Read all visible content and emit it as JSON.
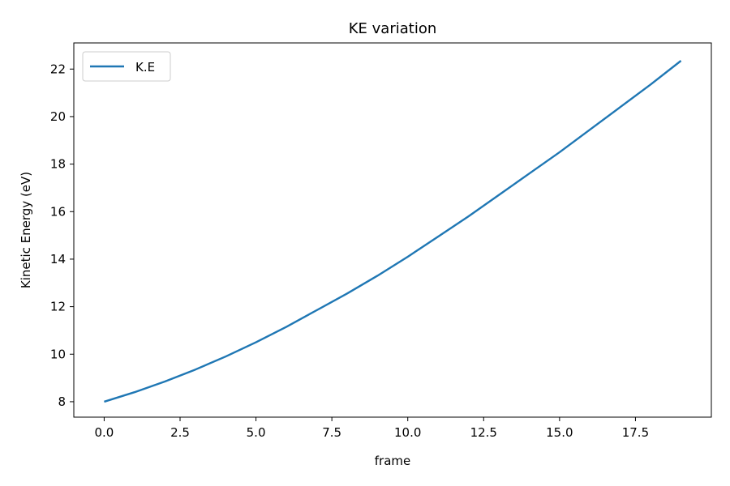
{
  "chart_data": {
    "type": "line",
    "title": "KE variation",
    "xlabel": "frame",
    "ylabel": "Kinetic Energy (eV)",
    "xlim": [
      -1,
      20
    ],
    "ylim": [
      7.35,
      23.1
    ],
    "xticks": [
      0.0,
      2.5,
      5.0,
      7.5,
      10.0,
      12.5,
      15.0,
      17.5
    ],
    "xtick_labels": [
      "0.0",
      "2.5",
      "5.0",
      "7.5",
      "10.0",
      "12.5",
      "15.0",
      "17.5"
    ],
    "yticks": [
      8,
      10,
      12,
      14,
      16,
      18,
      20,
      22
    ],
    "ytick_labels": [
      "8",
      "10",
      "12",
      "14",
      "16",
      "18",
      "20",
      "22"
    ],
    "grid": false,
    "legend_position": "top-left",
    "series": [
      {
        "name": "K.E",
        "color": "#1f77b4",
        "x": [
          0,
          1,
          2,
          3,
          4,
          5,
          6,
          7,
          8,
          9,
          10,
          11,
          12,
          13,
          14,
          15,
          16,
          17,
          18,
          19
        ],
        "y": [
          8.0,
          8.4,
          8.85,
          9.35,
          9.9,
          10.5,
          11.15,
          11.85,
          12.55,
          13.3,
          14.1,
          14.95,
          15.8,
          16.7,
          17.6,
          18.5,
          19.45,
          20.4,
          21.35,
          22.35
        ]
      }
    ]
  }
}
